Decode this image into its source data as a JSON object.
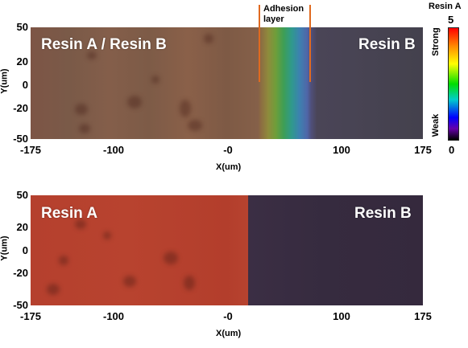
{
  "top_panel": {
    "left_label": "Resin A / Resin B",
    "right_label": "Resin B",
    "annotation": "Adhesion layer",
    "y_ticks": [
      "50",
      "20",
      "0",
      "-20",
      "-50"
    ],
    "x_ticks": [
      "-175",
      "-100",
      "-0",
      "100",
      "175"
    ],
    "xlabel": "X(um)",
    "ylabel": "Y(um)"
  },
  "bottom_panel": {
    "left_label": "Resin A",
    "right_label": "Resin B",
    "y_ticks": [
      "50",
      "20",
      "0",
      "-20",
      "-50"
    ],
    "x_ticks": [
      "-175",
      "-100",
      "-0",
      "100",
      "175"
    ],
    "xlabel": "X(um)",
    "ylabel": "Y(um)"
  },
  "colorbar": {
    "title": "Resin A",
    "max": "5",
    "min": "0",
    "strong": "Strong",
    "weak": "Weak"
  }
}
